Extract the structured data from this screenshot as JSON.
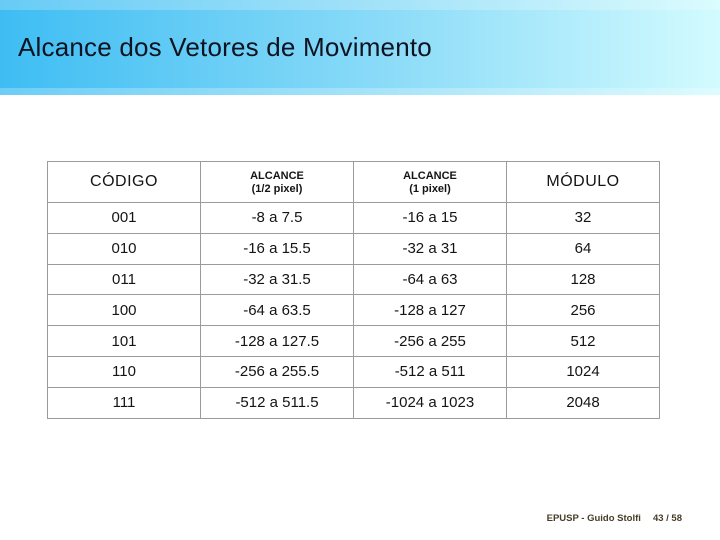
{
  "slide": {
    "title": "Alcance dos Vetores de Movimento",
    "footer": {
      "credit": "EPUSP - Guido Stolfi",
      "page": "43 / 58"
    }
  },
  "table": {
    "headers": [
      {
        "title": "CÓDIGO"
      },
      {
        "title": "ALCANCE",
        "subtitle": "(1/2 pixel)"
      },
      {
        "title": "ALCANCE",
        "subtitle": "(1 pixel)"
      },
      {
        "title": "MÓDULO"
      }
    ],
    "rows": [
      [
        "001",
        "-8 a 7.5",
        "-16 a 15",
        "32"
      ],
      [
        "010",
        "-16 a 15.5",
        "-32 a 31",
        "64"
      ],
      [
        "011",
        "-32 a 31.5",
        "-64 a 63",
        "128"
      ],
      [
        "100",
        "-64 a 63.5",
        "-128 a 127",
        "256"
      ],
      [
        "101",
        "-128 a 127.5",
        "-256 a 255",
        "512"
      ],
      [
        "110",
        "-256 a 255.5",
        "-512 a 511",
        "1024"
      ],
      [
        "111",
        "-512 a 511.5",
        "-1024 a 1023",
        "2048"
      ]
    ]
  },
  "colors": {
    "band_gradient_start": "#3ebdf3",
    "band_gradient_end": "#d2fbfe",
    "title_text": "#0e1321",
    "table_border": "#9b9b9b",
    "table_text": "#141414",
    "footer_text": "#473c28"
  }
}
